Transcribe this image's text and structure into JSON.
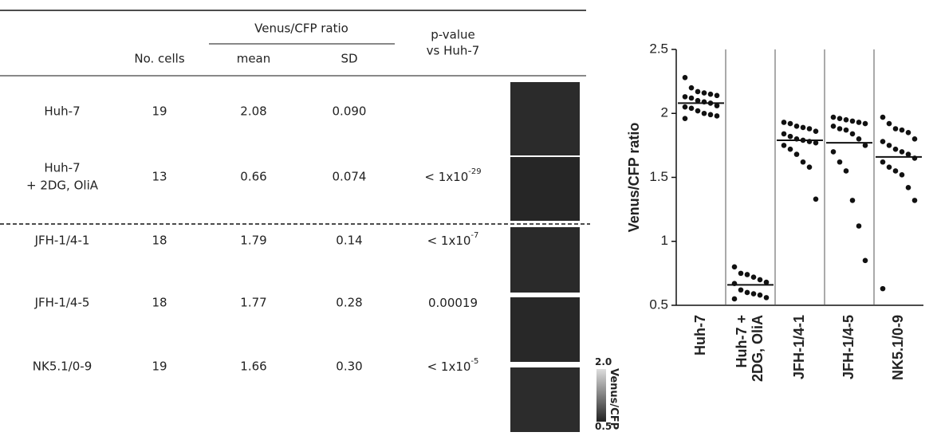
{
  "table": {
    "header": {
      "ratio_group": "Venus/CFP ratio",
      "cells": "No. cells",
      "mean": "mean",
      "sd": "SD",
      "pvalue": [
        "p-value",
        "vs Huh-7"
      ]
    },
    "rows": [
      {
        "label": [
          "Huh-7"
        ],
        "cells": "19",
        "mean": "2.08",
        "sd": "0.090"
      },
      {
        "label": [
          "Huh-7",
          "+ 2DG, OliA"
        ],
        "cells": "13",
        "mean": "0.66",
        "sd": "0.074",
        "pvalue": {
          "base": "< 1x10",
          "exp": "-29"
        }
      },
      {
        "label": [
          "JFH-1/4-1"
        ],
        "cells": "18",
        "mean": "1.79",
        "sd": "0.14",
        "pvalue": {
          "base": "< 1x10",
          "exp": "-7"
        }
      },
      {
        "label": [
          "JFH-1/4-5"
        ],
        "cells": "18",
        "mean": "1.77",
        "sd": "0.28",
        "pvalue": {
          "base": "0.00019"
        }
      },
      {
        "label": [
          "NK5.1/0-9"
        ],
        "cells": "19",
        "mean": "1.66",
        "sd": "0.30",
        "pvalue": {
          "base": "< 1x10",
          "exp": "-5"
        }
      }
    ]
  },
  "colorbar": {
    "max_label": "2.0",
    "min_label": "0.5",
    "title": "Venus/CFP"
  },
  "chart_data": {
    "type": "dot",
    "ylabel": "Venus/CFP ratio",
    "categories": [
      "Huh-7",
      [
        "Huh-7 +",
        "2DG, OliA"
      ],
      "JFH-1/4-1",
      "JFH-1/4-5",
      "NK5.1/0-9"
    ],
    "values": [
      [
        2.28,
        2.2,
        2.17,
        2.16,
        2.15,
        2.14,
        2.13,
        2.12,
        2.1,
        2.09,
        2.08,
        2.06,
        2.05,
        2.04,
        2.02,
        2.0,
        1.99,
        1.98,
        1.96
      ],
      [
        0.8,
        0.75,
        0.74,
        0.72,
        0.7,
        0.68,
        0.67,
        0.62,
        0.6,
        0.59,
        0.58,
        0.56,
        0.55
      ],
      [
        1.93,
        1.92,
        1.9,
        1.89,
        1.88,
        1.86,
        1.84,
        1.82,
        1.8,
        1.79,
        1.78,
        1.77,
        1.75,
        1.72,
        1.68,
        1.62,
        1.58,
        1.33
      ],
      [
        1.97,
        1.96,
        1.95,
        1.94,
        1.93,
        1.92,
        1.9,
        1.88,
        1.87,
        1.84,
        1.8,
        1.75,
        1.7,
        1.62,
        1.55,
        1.32,
        1.12,
        0.85
      ],
      [
        1.97,
        1.92,
        1.88,
        1.87,
        1.85,
        1.8,
        1.78,
        1.75,
        1.72,
        1.7,
        1.68,
        1.65,
        1.62,
        1.58,
        1.55,
        1.52,
        1.42,
        1.32,
        0.63
      ]
    ],
    "means": [
      2.08,
      0.66,
      1.79,
      1.77,
      1.66
    ],
    "color": "#111111",
    "ylim": [
      0.5,
      2.5
    ],
    "yticks": [
      0.5,
      1,
      1.5,
      2,
      2.5
    ]
  }
}
